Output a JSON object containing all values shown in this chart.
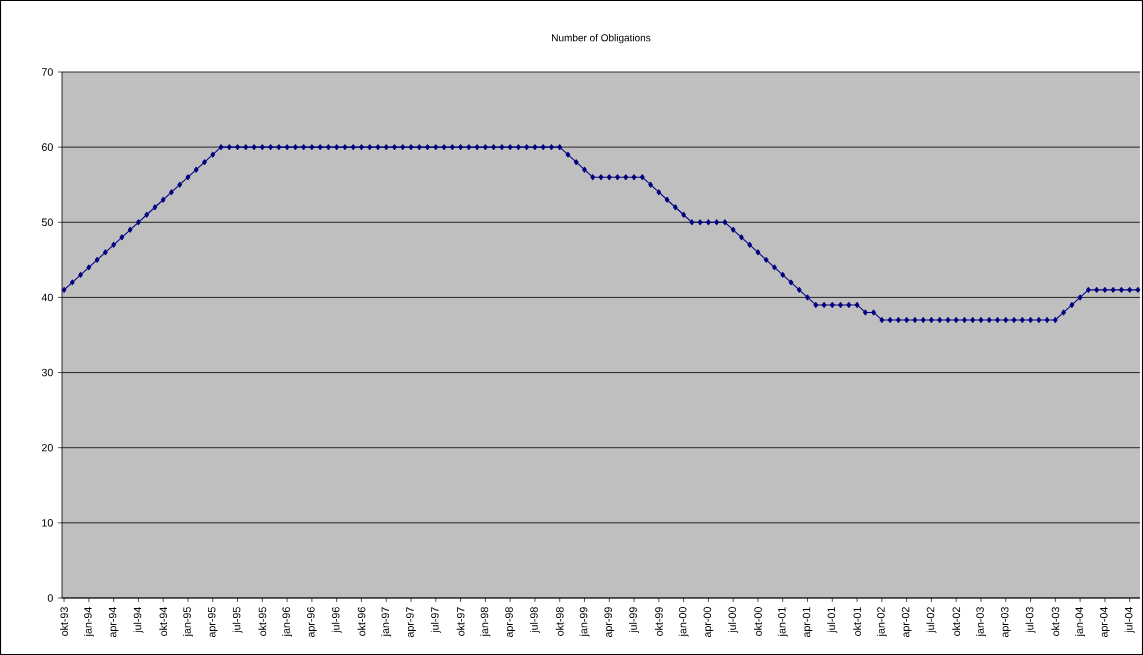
{
  "chart_data": {
    "type": "line",
    "title": "Number of Obligations",
    "categories": [
      "okt-93",
      null,
      null,
      "jan-94",
      null,
      null,
      "apr-94",
      null,
      null,
      "jul-94",
      null,
      null,
      "okt-94",
      null,
      null,
      "jan-95",
      null,
      null,
      "apr-95",
      null,
      null,
      "jul-95",
      null,
      null,
      "okt-95",
      null,
      null,
      "jan-96",
      null,
      null,
      "apr-96",
      null,
      null,
      "jul-96",
      null,
      null,
      "okt-96",
      null,
      null,
      "jan-97",
      null,
      null,
      "apr-97",
      null,
      null,
      "jul-97",
      null,
      null,
      "okt-97",
      null,
      null,
      "jan-98",
      null,
      null,
      "apr-98",
      null,
      null,
      "jul-98",
      null,
      null,
      "okt-98",
      null,
      null,
      "jan-99",
      null,
      null,
      "apr-99",
      null,
      null,
      "jul-99",
      null,
      null,
      "okt-99",
      null,
      null,
      "jan-00",
      null,
      null,
      "apr-00",
      null,
      null,
      "jul-00",
      null,
      null,
      "okt-00",
      null,
      null,
      "jan-01",
      null,
      null,
      "apr-01",
      null,
      null,
      "jul-01",
      null,
      null,
      "okt-01",
      null,
      null,
      "jan-02",
      null,
      null,
      "apr-02",
      null,
      null,
      "jul-02",
      null,
      null,
      "okt-02",
      null,
      null,
      "jan-03",
      null,
      null,
      "apr-03",
      null,
      null,
      "jul-03",
      null,
      null,
      "okt-03",
      null,
      null,
      "jan-04",
      null,
      null,
      "apr-04",
      null,
      null,
      "jul-04",
      null
    ],
    "values": [
      41,
      42,
      43,
      44,
      45,
      46,
      47,
      48,
      49,
      50,
      51,
      52,
      53,
      54,
      55,
      56,
      57,
      58,
      59,
      60,
      60,
      60,
      60,
      60,
      60,
      60,
      60,
      60,
      60,
      60,
      60,
      60,
      60,
      60,
      60,
      60,
      60,
      60,
      60,
      60,
      60,
      60,
      60,
      60,
      60,
      60,
      60,
      60,
      60,
      60,
      60,
      60,
      60,
      60,
      60,
      60,
      60,
      60,
      60,
      60,
      60,
      59,
      58,
      57,
      56,
      56,
      56,
      56,
      56,
      56,
      56,
      55,
      54,
      53,
      52,
      51,
      50,
      50,
      50,
      50,
      50,
      49,
      48,
      47,
      46,
      45,
      44,
      43,
      42,
      41,
      40,
      39,
      39,
      39,
      39,
      39,
      39,
      38,
      38,
      37,
      37,
      37,
      37,
      37,
      37,
      37,
      37,
      37,
      37,
      37,
      37,
      37,
      37,
      37,
      37,
      37,
      37,
      37,
      37,
      37,
      37,
      38,
      39,
      40,
      41,
      41,
      41,
      41,
      41,
      41,
      41
    ],
    "color": "#000080",
    "marker": "diamond",
    "line_style": "solid",
    "ylim": [
      0,
      70
    ],
    "yticks": [
      0,
      10,
      20,
      30,
      40,
      50,
      60,
      70
    ],
    "grid": "y"
  }
}
